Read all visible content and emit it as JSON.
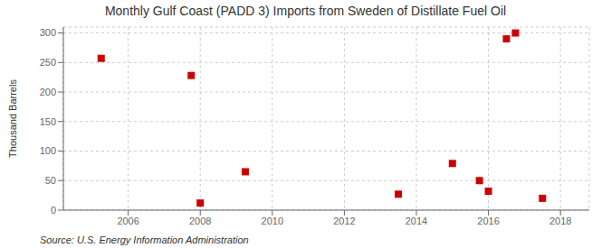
{
  "chart_data": {
    "type": "scatter",
    "title": "Monthly Gulf Coast (PADD 3) Imports from Sweden of Distillate Fuel Oil",
    "ylabel": "Thousand Barrels",
    "annotation": "Source: U.S. Energy Information Administration",
    "x": [
      2005.25,
      2007.75,
      2008.0,
      2009.25,
      2013.5,
      2015.0,
      2015.75,
      2016.0,
      2016.5,
      2016.75,
      2017.5
    ],
    "values": [
      257,
      228,
      12,
      65,
      27,
      79,
      50,
      32,
      290,
      300,
      20
    ],
    "color": "#cc0000",
    "marker": "square",
    "xlim": [
      2004.2,
      2018.8
    ],
    "xticks": [
      2006,
      2008,
      2010,
      2012,
      2014,
      2016,
      2018
    ],
    "ylim": [
      0,
      310
    ],
    "yticks": [
      0,
      50,
      100,
      150,
      200,
      250,
      300
    ],
    "grid": true
  }
}
